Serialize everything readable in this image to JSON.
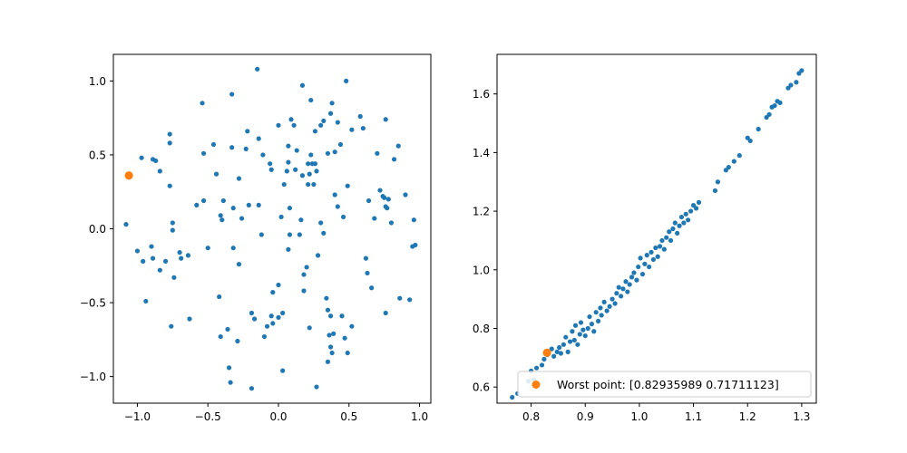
{
  "chart_data": [
    {
      "type": "scatter",
      "title": "",
      "xlabel": "",
      "ylabel": "",
      "xlim": [
        -1.17,
        1.08
      ],
      "ylim": [
        -1.18,
        1.18
      ],
      "xticks": [
        -1.0,
        -0.5,
        0.0,
        0.5,
        1.0
      ],
      "xtick_labels": [
        "−1.0",
        "−0.5",
        "0.0",
        "0.5",
        "1.0"
      ],
      "yticks": [
        -1.0,
        -0.5,
        0.0,
        0.5,
        1.0
      ],
      "ytick_labels": [
        "−1.0",
        "−0.5",
        "0.0",
        "0.5",
        "1.0"
      ],
      "grid": false,
      "colors": {
        "main": "#1f77b4",
        "highlight": "#ff7f0e"
      },
      "series": [
        {
          "points": [
            [
              -1.08,
              0.03
            ],
            [
              -1.0,
              -0.15
            ],
            [
              -0.97,
              0.48
            ],
            [
              -0.96,
              -0.22
            ],
            [
              -0.94,
              -0.49
            ],
            [
              -0.9,
              -0.12
            ],
            [
              -0.89,
              -0.2
            ],
            [
              -0.89,
              0.47
            ],
            [
              -0.87,
              0.46
            ],
            [
              -0.84,
              0.39
            ],
            [
              -0.84,
              -0.28
            ],
            [
              -0.8,
              -0.22
            ],
            [
              -0.77,
              0.64
            ],
            [
              -0.77,
              0.58
            ],
            [
              -0.77,
              0.29
            ],
            [
              -0.76,
              -0.66
            ],
            [
              -0.75,
              0.04
            ],
            [
              -0.75,
              -0.01
            ],
            [
              -0.74,
              -0.33
            ],
            [
              -0.7,
              -0.16
            ],
            [
              -0.69,
              -0.2
            ],
            [
              -0.64,
              -0.18
            ],
            [
              -0.63,
              -0.61
            ],
            [
              -0.58,
              0.16
            ],
            [
              -0.54,
              0.85
            ],
            [
              -0.53,
              0.51
            ],
            [
              -0.53,
              0.19
            ],
            [
              -0.5,
              -0.13
            ],
            [
              -0.46,
              0.57
            ],
            [
              -0.44,
              0.37
            ],
            [
              -0.42,
              -0.46
            ],
            [
              -0.41,
              -0.73
            ],
            [
              -0.41,
              0.09
            ],
            [
              -0.4,
              0.06
            ],
            [
              -0.39,
              0.19
            ],
            [
              -0.36,
              -0.68
            ],
            [
              -0.35,
              -0.94
            ],
            [
              -0.34,
              -1.04
            ],
            [
              -0.33,
              0.91
            ],
            [
              -0.33,
              0.55
            ],
            [
              -0.32,
              0.14
            ],
            [
              -0.32,
              -0.13
            ],
            [
              -0.29,
              -0.76
            ],
            [
              -0.28,
              -0.24
            ],
            [
              -0.28,
              0.34
            ],
            [
              -0.26,
              0.07
            ],
            [
              -0.23,
              0.54
            ],
            [
              -0.22,
              0.66
            ],
            [
              -0.21,
              0.16
            ],
            [
              -0.19,
              -1.08
            ],
            [
              -0.19,
              -0.57
            ],
            [
              -0.17,
              -0.61
            ],
            [
              -0.15,
              1.08
            ],
            [
              -0.14,
              0.16
            ],
            [
              -0.14,
              0.61
            ],
            [
              -0.12,
              -0.04
            ],
            [
              -0.11,
              0.5
            ],
            [
              -0.1,
              -0.73
            ],
            [
              -0.08,
              -0.66
            ],
            [
              -0.06,
              0.44
            ],
            [
              -0.05,
              0.4
            ],
            [
              -0.05,
              -0.59
            ],
            [
              -0.04,
              -0.64
            ],
            [
              -0.04,
              -0.43
            ],
            [
              0.0,
              0.7
            ],
            [
              0.0,
              -0.38
            ],
            [
              0.0,
              -0.6
            ],
            [
              0.02,
              0.08
            ],
            [
              0.03,
              -0.96
            ],
            [
              0.03,
              -0.57
            ],
            [
              0.04,
              0.3
            ],
            [
              0.06,
              0.39
            ],
            [
              0.07,
              0.45
            ],
            [
              0.07,
              0.56
            ],
            [
              0.07,
              -0.14
            ],
            [
              0.08,
              0.14
            ],
            [
              0.08,
              -0.04
            ],
            [
              0.09,
              0.74
            ],
            [
              0.11,
              0.7
            ],
            [
              0.12,
              0.4
            ],
            [
              0.13,
              0.53
            ],
            [
              0.15,
              -0.04
            ],
            [
              0.16,
              0.06
            ],
            [
              0.17,
              0.36
            ],
            [
              0.17,
              0.97
            ],
            [
              0.18,
              -0.31
            ],
            [
              0.18,
              -0.42
            ],
            [
              0.2,
              -0.26
            ],
            [
              0.21,
              0.3
            ],
            [
              0.21,
              0.44
            ],
            [
              0.22,
              -0.67
            ],
            [
              0.22,
              0.37
            ],
            [
              0.23,
              0.87
            ],
            [
              0.23,
              0.5
            ],
            [
              0.24,
              0.44
            ],
            [
              0.25,
              0.3
            ],
            [
              0.26,
              0.66
            ],
            [
              0.26,
              0.44
            ],
            [
              0.27,
              0.39
            ],
            [
              0.27,
              -1.07
            ],
            [
              0.28,
              -0.18
            ],
            [
              0.3,
              0.04
            ],
            [
              0.3,
              0.7
            ],
            [
              0.32,
              0.73
            ],
            [
              0.32,
              -0.03
            ],
            [
              0.34,
              -0.47
            ],
            [
              0.35,
              -0.9
            ],
            [
              0.35,
              0.51
            ],
            [
              0.35,
              -0.55
            ],
            [
              0.36,
              -0.72
            ],
            [
              0.37,
              -0.8
            ],
            [
              0.37,
              0.78
            ],
            [
              0.37,
              -0.59
            ],
            [
              0.38,
              0.85
            ],
            [
              0.38,
              -0.84
            ],
            [
              0.39,
              -0.71
            ],
            [
              0.4,
              0.23
            ],
            [
              0.4,
              0.52
            ],
            [
              0.42,
              0.15
            ],
            [
              0.42,
              0.72
            ],
            [
              0.44,
              0.57
            ],
            [
              0.45,
              -0.59
            ],
            [
              0.46,
              0.08
            ],
            [
              0.47,
              -0.74
            ],
            [
              0.48,
              1.0
            ],
            [
              0.49,
              -0.84
            ],
            [
              0.49,
              0.29
            ],
            [
              0.52,
              -0.66
            ],
            [
              0.52,
              0.67
            ],
            [
              0.58,
              0.76
            ],
            [
              0.6,
              0.68
            ],
            [
              0.62,
              -0.2
            ],
            [
              0.64,
              0.19
            ],
            [
              0.63,
              -0.3
            ],
            [
              0.66,
              -0.4
            ],
            [
              0.68,
              0.07
            ],
            [
              0.7,
              0.51
            ],
            [
              0.72,
              0.26
            ],
            [
              0.74,
              0.22
            ],
            [
              0.75,
              0.21
            ],
            [
              0.76,
              0.15
            ],
            [
              0.76,
              0.74
            ],
            [
              0.76,
              -0.57
            ],
            [
              0.77,
              0.14
            ],
            [
              0.78,
              0.2
            ],
            [
              0.8,
              0.04
            ],
            [
              0.82,
              0.47
            ],
            [
              0.85,
              0.56
            ],
            [
              0.86,
              -0.47
            ],
            [
              0.9,
              0.23
            ],
            [
              0.93,
              -0.48
            ],
            [
              0.95,
              -0.12
            ],
            [
              0.96,
              0.06
            ],
            [
              0.97,
              -0.11
            ]
          ]
        },
        {
          "points": [
            [
              -1.06,
              0.36
            ]
          ]
        }
      ]
    },
    {
      "type": "scatter",
      "title": "",
      "xlabel": "",
      "ylabel": "",
      "xlim": [
        0.737,
        1.327
      ],
      "ylim": [
        0.545,
        1.735
      ],
      "xticks": [
        0.8,
        0.9,
        1.0,
        1.1,
        1.2,
        1.3
      ],
      "xtick_labels": [
        "0.8",
        "0.9",
        "1.0",
        "1.1",
        "1.2",
        "1.3"
      ],
      "yticks": [
        0.6,
        0.8,
        1.0,
        1.2,
        1.4,
        1.6
      ],
      "ytick_labels": [
        "0.6",
        "0.8",
        "1.0",
        "1.2",
        "1.4",
        "1.6"
      ],
      "grid": false,
      "legend_position": "lower-right",
      "colors": {
        "main": "#1f77b4",
        "highlight": "#ff7f0e"
      },
      "series": [
        {
          "points": [
            [
              0.765,
              0.565
            ],
            [
              0.775,
              0.578
            ],
            [
              0.795,
              0.62
            ],
            [
              0.8,
              0.655
            ],
            [
              0.805,
              0.625
            ],
            [
              0.807,
              0.605
            ],
            [
              0.81,
              0.665
            ],
            [
              0.82,
              0.675
            ],
            [
              0.824,
              0.695
            ],
            [
              0.83,
              0.71
            ],
            [
              0.838,
              0.73
            ],
            [
              0.842,
              0.705
            ],
            [
              0.848,
              0.72
            ],
            [
              0.852,
              0.735
            ],
            [
              0.855,
              0.715
            ],
            [
              0.86,
              0.745
            ],
            [
              0.864,
              0.77
            ],
            [
              0.868,
              0.72
            ],
            [
              0.872,
              0.755
            ],
            [
              0.876,
              0.79
            ],
            [
              0.88,
              0.76
            ],
            [
              0.882,
              0.81
            ],
            [
              0.886,
              0.745
            ],
            [
              0.89,
              0.78
            ],
            [
              0.892,
              0.82
            ],
            [
              0.896,
              0.795
            ],
            [
              0.9,
              0.775
            ],
            [
              0.905,
              0.8
            ],
            [
              0.908,
              0.84
            ],
            [
              0.912,
              0.815
            ],
            [
              0.916,
              0.79
            ],
            [
              0.92,
              0.855
            ],
            [
              0.924,
              0.825
            ],
            [
              0.928,
              0.87
            ],
            [
              0.93,
              0.845
            ],
            [
              0.935,
              0.89
            ],
            [
              0.94,
              0.86
            ],
            [
              0.945,
              0.875
            ],
            [
              0.95,
              0.9
            ],
            [
              0.955,
              0.885
            ],
            [
              0.958,
              0.92
            ],
            [
              0.962,
              0.94
            ],
            [
              0.966,
              0.91
            ],
            [
              0.97,
              0.935
            ],
            [
              0.975,
              0.96
            ],
            [
              0.978,
              0.925
            ],
            [
              0.982,
              0.95
            ],
            [
              0.986,
              0.975
            ],
            [
              0.99,
              0.99
            ],
            [
              0.995,
              0.965
            ],
            [
              0.998,
              1.01
            ],
            [
              1.002,
              1.04
            ],
            [
              1.006,
              0.985
            ],
            [
              1.01,
              1.02
            ],
            [
              1.014,
              1.05
            ],
            [
              1.018,
              1.01
            ],
            [
              1.022,
              1.06
            ],
            [
              1.026,
              1.035
            ],
            [
              1.03,
              1.075
            ],
            [
              1.034,
              1.045
            ],
            [
              1.038,
              1.08
            ],
            [
              1.042,
              1.1
            ],
            [
              1.046,
              1.07
            ],
            [
              1.05,
              1.11
            ],
            [
              1.055,
              1.13
            ],
            [
              1.058,
              1.1
            ],
            [
              1.062,
              1.14
            ],
            [
              1.066,
              1.16
            ],
            [
              1.07,
              1.125
            ],
            [
              1.074,
              1.15
            ],
            [
              1.078,
              1.18
            ],
            [
              1.082,
              1.16
            ],
            [
              1.086,
              1.19
            ],
            [
              1.09,
              1.17
            ],
            [
              1.095,
              1.2
            ],
            [
              1.1,
              1.22
            ],
            [
              1.105,
              1.21
            ],
            [
              1.11,
              1.23
            ],
            [
              1.14,
              1.27
            ],
            [
              1.145,
              1.3
            ],
            [
              1.16,
              1.34
            ],
            [
              1.165,
              1.35
            ],
            [
              1.175,
              1.37
            ],
            [
              1.185,
              1.39
            ],
            [
              1.2,
              1.45
            ],
            [
              1.205,
              1.44
            ],
            [
              1.22,
              1.48
            ],
            [
              1.235,
              1.52
            ],
            [
              1.24,
              1.53
            ],
            [
              1.245,
              1.555
            ],
            [
              1.25,
              1.56
            ],
            [
              1.255,
              1.575
            ],
            [
              1.26,
              1.57
            ],
            [
              1.275,
              1.62
            ],
            [
              1.28,
              1.63
            ],
            [
              1.29,
              1.64
            ],
            [
              1.295,
              1.67
            ],
            [
              1.3,
              1.68
            ]
          ]
        },
        {
          "name": "Worst point: [0.82935989 0.71711123]",
          "points": [
            [
              0.82935989,
              0.71711123
            ]
          ]
        }
      ]
    }
  ]
}
